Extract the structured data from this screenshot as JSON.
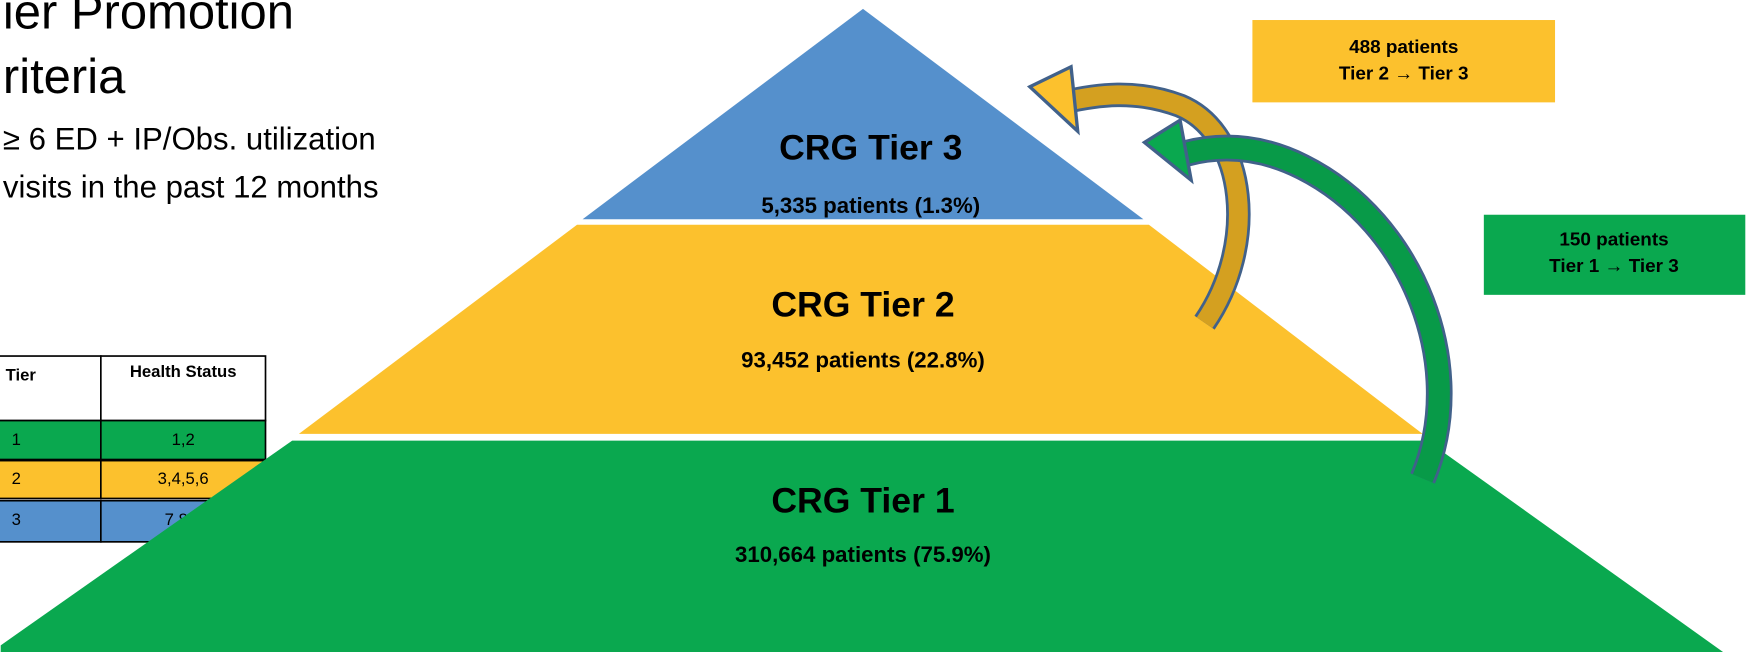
{
  "header": {
    "title_lines": [
      "ier Promotion",
      "riteria"
    ],
    "criteria_lines": [
      "≥ 6 ED + IP/Obs. utilization",
      "visits in the past 12 months"
    ]
  },
  "table": {
    "header": [
      "Tier",
      "Health Status"
    ],
    "rows": [
      [
        "1",
        "1,2"
      ],
      [
        "2",
        "3,4,5,6"
      ],
      [
        "3",
        "7,8,9"
      ]
    ]
  },
  "tiers": [
    {
      "label": "CRG Tier 3",
      "count": "5,335 patients (1.3%)"
    },
    {
      "label": "CRG Tier 2",
      "count": "93,452 patients (22.8%)"
    },
    {
      "label": "CRG Tier 1",
      "count": "310,664 patients (75.9%)"
    }
  ],
  "transitions": [
    {
      "patients": "488 patients",
      "move": "Tier 2 → Tier 3"
    },
    {
      "patients": "150 patients",
      "move": "Tier 1 → Tier 3"
    }
  ]
}
